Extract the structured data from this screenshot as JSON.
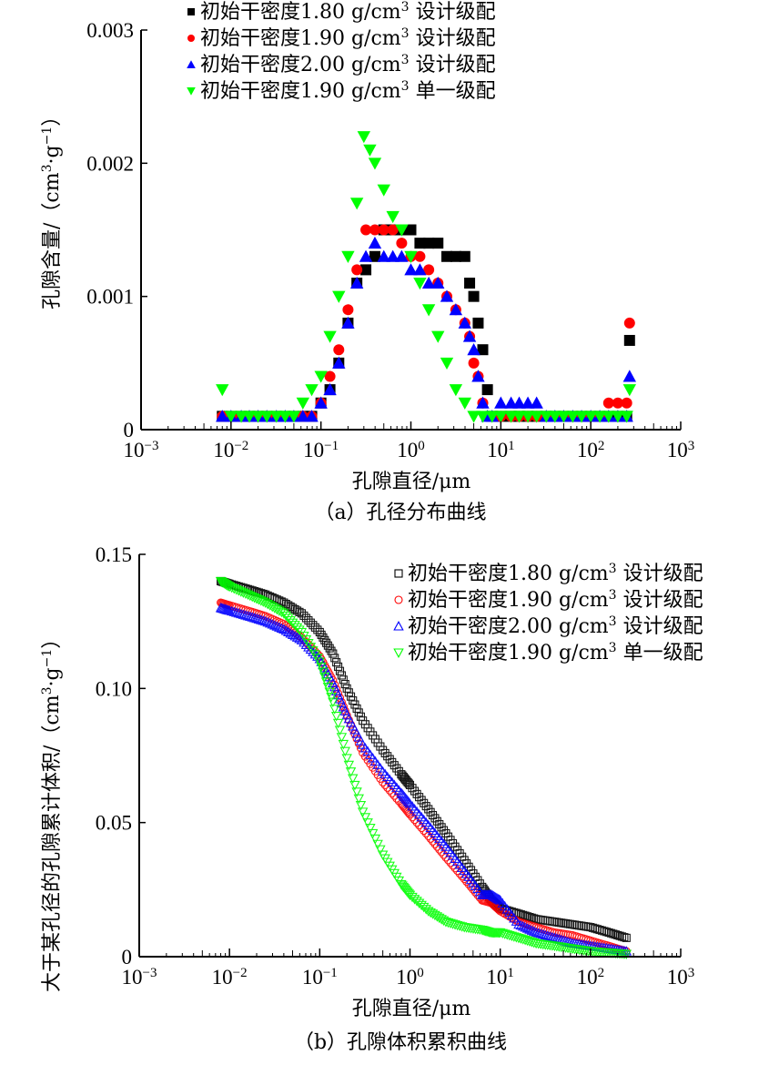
{
  "chart_data": [
    {
      "type": "scatter",
      "panel": "a",
      "caption": "（a）孔径分布曲线",
      "xlabel": "孔隙直径/μm",
      "ylabel": "孔隙含量/（cm³·g⁻¹）",
      "ylabel_main": "孔隙含量/（cm",
      "ylabel_sup1": "3",
      "ylabel_mid": "·g",
      "ylabel_sup2": "−1",
      "ylabel_end": "）",
      "xscale": "log",
      "xlim": [
        0.001,
        1000
      ],
      "ylim": [
        0,
        0.003
      ],
      "x_ticks": [
        {
          "base": "10",
          "exp": "−3"
        },
        {
          "base": "10",
          "exp": "−2"
        },
        {
          "base": "10",
          "exp": "−1"
        },
        {
          "base": "10",
          "exp": "0"
        },
        {
          "base": "10",
          "exp": "1"
        },
        {
          "base": "10",
          "exp": "2"
        },
        {
          "base": "10",
          "exp": "3"
        }
      ],
      "y_ticks": [
        "0",
        "0.001",
        "0.002",
        "0.003"
      ],
      "y_tick_values": [
        0,
        0.001,
        0.002,
        0.003
      ],
      "legend_position": "top",
      "series": [
        {
          "name": "初始干密度1.80 g/cm³ 设计级配",
          "label_pre": "初始干密度1.80 g/cm",
          "label_sup": "3",
          "label_post": " 设计级配",
          "color": "#000000",
          "marker": "square-filled",
          "x": [
            0.008,
            0.01,
            0.013,
            0.016,
            0.02,
            0.025,
            0.032,
            0.04,
            0.05,
            0.063,
            0.079,
            0.1,
            0.126,
            0.158,
            0.2,
            0.251,
            0.316,
            0.398,
            0.5,
            0.63,
            0.79,
            1.0,
            1.26,
            1.58,
            2.0,
            2.51,
            3.16,
            3.98,
            4.5,
            5.0,
            5.6,
            6.3,
            7.1,
            8.0,
            10,
            13,
            16,
            20,
            25,
            32,
            40,
            50,
            63,
            79,
            100,
            126,
            158,
            200,
            251,
            270
          ],
          "y": [
            0.0001,
            0.0001,
            0.0001,
            0.0001,
            0.0001,
            0.0001,
            0.0001,
            0.0001,
            0.0001,
            0.0001,
            0.0001,
            0.0002,
            0.0003,
            0.0005,
            0.0008,
            0.0011,
            0.0012,
            0.0013,
            0.0015,
            0.0015,
            0.0015,
            0.0015,
            0.0014,
            0.0014,
            0.0014,
            0.0013,
            0.0013,
            0.0013,
            0.0011,
            0.001,
            0.0008,
            0.0006,
            0.0003,
            0.0001,
            0.0001,
            0.0001,
            0.0001,
            0.0001,
            0.0001,
            0.0001,
            0.0001,
            0.0001,
            0.0001,
            0.0001,
            0.0001,
            0.0001,
            0.0001,
            0.0001,
            0.0001,
            0.00067
          ]
        },
        {
          "name": "初始干密度1.90 g/cm³ 设计级配",
          "label_pre": "初始干密度1.90 g/cm",
          "label_sup": "3",
          "label_post": " 设计级配",
          "color": "#ff0000",
          "marker": "circle-filled",
          "x": [
            0.008,
            0.01,
            0.013,
            0.016,
            0.02,
            0.025,
            0.032,
            0.04,
            0.05,
            0.063,
            0.079,
            0.1,
            0.126,
            0.158,
            0.2,
            0.251,
            0.316,
            0.398,
            0.5,
            0.63,
            0.79,
            1.0,
            1.26,
            1.58,
            2.0,
            2.51,
            3.16,
            3.98,
            4.5,
            5.0,
            5.6,
            6.3,
            7.1,
            8.0,
            10,
            13,
            16,
            20,
            25,
            32,
            40,
            50,
            63,
            79,
            100,
            126,
            158,
            200,
            251,
            270
          ],
          "y": [
            0.0001,
            0.0001,
            0.0001,
            0.0001,
            0.0001,
            0.0001,
            0.0001,
            0.0001,
            0.0001,
            0.0001,
            0.0001,
            0.0002,
            0.0004,
            0.0006,
            0.0009,
            0.0012,
            0.0015,
            0.0015,
            0.0015,
            0.0015,
            0.0014,
            0.0013,
            0.0013,
            0.0012,
            0.0011,
            0.001,
            0.0009,
            0.0008,
            0.0007,
            0.0005,
            0.0004,
            0.0002,
            0.0001,
            0.0001,
            0.0001,
            0.0001,
            0.0001,
            0.0001,
            0.0001,
            0.0001,
            0.0001,
            0.0001,
            0.0001,
            0.0001,
            0.0001,
            0.0001,
            0.0002,
            0.0002,
            0.0002,
            0.0008
          ]
        },
        {
          "name": "初始干密度2.00 g/cm³ 设计级配",
          "label_pre": "初始干密度2.00 g/cm",
          "label_sup": "3",
          "label_post": " 设计级配",
          "color": "#0000ff",
          "marker": "triangle-up-filled",
          "x": [
            0.008,
            0.01,
            0.013,
            0.016,
            0.02,
            0.025,
            0.032,
            0.04,
            0.05,
            0.063,
            0.079,
            0.1,
            0.126,
            0.158,
            0.2,
            0.251,
            0.316,
            0.398,
            0.5,
            0.63,
            0.79,
            1.0,
            1.26,
            1.58,
            2.0,
            2.51,
            3.16,
            3.98,
            4.5,
            5.0,
            5.6,
            6.3,
            7.1,
            8.0,
            10,
            13,
            16,
            20,
            25,
            32,
            40,
            50,
            63,
            79,
            100,
            126,
            158,
            200,
            251,
            270
          ],
          "y": [
            0.0001,
            0.0001,
            0.0001,
            0.0001,
            0.0001,
            0.0001,
            0.0001,
            0.0001,
            0.0001,
            0.0001,
            0.0001,
            0.0002,
            0.0003,
            0.0005,
            0.0008,
            0.0011,
            0.0013,
            0.0014,
            0.0013,
            0.0013,
            0.0013,
            0.0012,
            0.0012,
            0.0011,
            0.0011,
            0.001,
            0.0009,
            0.0008,
            0.0007,
            0.0006,
            0.0004,
            0.0002,
            0.0001,
            0.0001,
            0.0002,
            0.0002,
            0.0002,
            0.0002,
            0.0002,
            0.0001,
            0.0001,
            0.0001,
            0.0001,
            0.0001,
            0.0001,
            0.0001,
            0.0001,
            0.0001,
            0.0001,
            0.0004
          ]
        },
        {
          "name": "初始干密度1.90 g/cm³ 单一级配",
          "label_pre": "初始干密度1.90 g/cm",
          "label_sup": "3",
          "label_post": " 单一级配",
          "color": "#00ff00",
          "marker": "triangle-down-filled",
          "x": [
            0.008,
            0.01,
            0.013,
            0.016,
            0.02,
            0.025,
            0.032,
            0.04,
            0.05,
            0.063,
            0.079,
            0.1,
            0.126,
            0.158,
            0.2,
            0.251,
            0.3,
            0.35,
            0.398,
            0.5,
            0.63,
            0.79,
            1.0,
            1.26,
            1.58,
            2.0,
            2.51,
            3.16,
            3.98,
            5.0,
            6.3,
            8.0,
            10,
            13,
            16,
            20,
            25,
            32,
            40,
            50,
            63,
            79,
            100,
            126,
            158,
            200,
            251,
            270
          ],
          "y": [
            0.0003,
            0.0001,
            0.0001,
            0.0001,
            0.0001,
            0.0001,
            0.0001,
            0.0001,
            0.0001,
            0.0002,
            0.0003,
            0.0004,
            0.0007,
            0.001,
            0.0013,
            0.0017,
            0.0022,
            0.0021,
            0.002,
            0.0018,
            0.0016,
            0.0015,
            0.0013,
            0.0011,
            0.0009,
            0.0007,
            0.0005,
            0.0003,
            0.0002,
            0.0001,
            0.0001,
            0.0001,
            0.0001,
            0.0001,
            0.0001,
            0.0001,
            0.0001,
            0.0001,
            0.0001,
            0.0001,
            0.0001,
            0.0001,
            0.0001,
            0.0001,
            0.0001,
            0.0001,
            0.0001,
            0.0003
          ]
        }
      ]
    },
    {
      "type": "scatter",
      "panel": "b",
      "caption": "（b）孔隙体积累积曲线",
      "xlabel": "孔隙直径/μm",
      "ylabel": "大于某孔径的孔隙累计体积/（cm³·g⁻¹）",
      "ylabel_main": "大于某孔径的孔隙累计体积/（cm",
      "ylabel_sup1": "3",
      "ylabel_mid": "·g",
      "ylabel_sup2": "−1",
      "ylabel_end": "）",
      "xscale": "log",
      "xlim": [
        0.001,
        1000
      ],
      "ylim": [
        0,
        0.15
      ],
      "x_ticks": [
        {
          "base": "10",
          "exp": "−3"
        },
        {
          "base": "10",
          "exp": "−2"
        },
        {
          "base": "10",
          "exp": "−1"
        },
        {
          "base": "10",
          "exp": "0"
        },
        {
          "base": "10",
          "exp": "1"
        },
        {
          "base": "10",
          "exp": "2"
        },
        {
          "base": "10",
          "exp": "3"
        }
      ],
      "y_ticks": [
        "0",
        "0.05",
        "0.10",
        "0.15"
      ],
      "y_tick_values": [
        0,
        0.05,
        0.1,
        0.15
      ],
      "legend_position": "top-right",
      "series": [
        {
          "name": "初始干密度1.80 g/cm³ 设计级配",
          "label_pre": "初始干密度1.80 g/cm",
          "label_sup": "3",
          "label_post": " 设计级配",
          "color": "#000000",
          "marker": "square-open",
          "x": [
            0.008,
            0.01,
            0.016,
            0.025,
            0.04,
            0.063,
            0.1,
            0.14,
            0.2,
            0.3,
            0.5,
            0.8,
            1.0,
            1.6,
            2.5,
            4.0,
            6.3,
            8.0,
            10,
            16,
            25,
            40,
            63,
            100,
            160,
            250
          ],
          "y": [
            0.14,
            0.139,
            0.137,
            0.135,
            0.132,
            0.128,
            0.121,
            0.113,
            0.1,
            0.088,
            0.077,
            0.068,
            0.064,
            0.055,
            0.046,
            0.036,
            0.026,
            0.021,
            0.018,
            0.016,
            0.014,
            0.013,
            0.012,
            0.011,
            0.009,
            0.007
          ]
        },
        {
          "name": "初始干密度1.90 g/cm³ 设计级配",
          "label_pre": "初始干密度1.90 g/cm",
          "label_sup": "3",
          "label_post": " 设计级配",
          "color": "#ff0000",
          "marker": "circle-open",
          "x": [
            0.008,
            0.01,
            0.016,
            0.025,
            0.04,
            0.063,
            0.1,
            0.14,
            0.2,
            0.3,
            0.5,
            0.8,
            1.0,
            1.6,
            2.5,
            4.0,
            6.3,
            8.0,
            10,
            16,
            25,
            40,
            63,
            100,
            160,
            250
          ],
          "y": [
            0.132,
            0.131,
            0.129,
            0.127,
            0.124,
            0.119,
            0.112,
            0.103,
            0.09,
            0.076,
            0.065,
            0.057,
            0.053,
            0.045,
            0.037,
            0.029,
            0.021,
            0.02,
            0.017,
            0.013,
            0.011,
            0.009,
            0.008,
            0.006,
            0.004,
            0.002
          ]
        },
        {
          "name": "初始干密度2.00 g/cm³ 设计级配",
          "label_pre": "初始干密度2.00 g/cm",
          "label_sup": "3",
          "label_post": " 设计级配",
          "color": "#0000ff",
          "marker": "triangle-up-open",
          "x": [
            0.008,
            0.01,
            0.016,
            0.025,
            0.04,
            0.063,
            0.1,
            0.14,
            0.2,
            0.3,
            0.5,
            0.8,
            1.0,
            1.6,
            2.5,
            4.0,
            6.3,
            8.0,
            10,
            16,
            25,
            40,
            63,
            100,
            160,
            250
          ],
          "y": [
            0.13,
            0.129,
            0.127,
            0.125,
            0.122,
            0.118,
            0.111,
            0.102,
            0.09,
            0.079,
            0.069,
            0.061,
            0.057,
            0.049,
            0.041,
            0.032,
            0.023,
            0.023,
            0.021,
            0.012,
            0.009,
            0.007,
            0.005,
            0.004,
            0.003,
            0.002
          ]
        },
        {
          "name": "初始干密度1.90 g/cm³ 单一级配",
          "label_pre": "初始干密度1.90 g/cm",
          "label_sup": "3",
          "label_post": " 单一级配",
          "color": "#00ff00",
          "marker": "triangle-down-open",
          "x": [
            0.008,
            0.01,
            0.016,
            0.025,
            0.04,
            0.063,
            0.1,
            0.14,
            0.2,
            0.3,
            0.5,
            0.8,
            1.0,
            1.6,
            2.5,
            4.0,
            6.3,
            8.0,
            10,
            16,
            25,
            40,
            63,
            100,
            160,
            250
          ],
          "y": [
            0.14,
            0.138,
            0.135,
            0.132,
            0.128,
            0.121,
            0.11,
            0.095,
            0.074,
            0.054,
            0.038,
            0.027,
            0.023,
            0.017,
            0.013,
            0.011,
            0.01,
            0.009,
            0.009,
            0.007,
            0.005,
            0.004,
            0.003,
            0.002,
            0.0015,
            0.001
          ]
        }
      ]
    }
  ]
}
